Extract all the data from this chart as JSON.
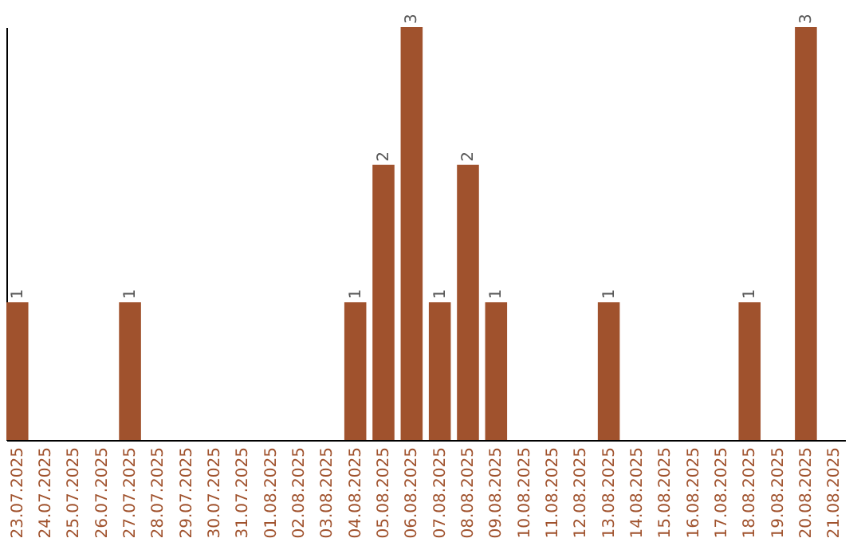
{
  "chart_data": {
    "type": "bar",
    "categories": [
      "23.07.2025",
      "24.07.2025",
      "25.07.2025",
      "26.07.2025",
      "27.07.2025",
      "28.07.2025",
      "29.07.2025",
      "30.07.2025",
      "31.07.2025",
      "01.08.2025",
      "02.08.2025",
      "03.08.2025",
      "04.08.2025",
      "05.08.2025",
      "06.08.2025",
      "07.08.2025",
      "08.08.2025",
      "09.08.2025",
      "10.08.2025",
      "11.08.2025",
      "12.08.2025",
      "13.08.2025",
      "14.08.2025",
      "15.08.2025",
      "16.08.2025",
      "17.08.2025",
      "18.08.2025",
      "19.08.2025",
      "20.08.2025",
      "21.08.2025"
    ],
    "values": [
      1,
      0,
      0,
      0,
      1,
      0,
      0,
      0,
      0,
      0,
      0,
      0,
      1,
      2,
      3,
      1,
      2,
      1,
      0,
      0,
      0,
      1,
      0,
      0,
      0,
      0,
      1,
      0,
      3,
      0
    ],
    "value_labels": [
      "1",
      null,
      null,
      null,
      "1",
      null,
      null,
      null,
      null,
      null,
      null,
      null,
      "1",
      "2",
      "3",
      "1",
      "2",
      "1",
      null,
      null,
      null,
      "1",
      null,
      null,
      null,
      null,
      "1",
      null,
      "3",
      null
    ],
    "color": "#a0522d",
    "ylim": [
      0,
      3
    ],
    "tick_labels": "x",
    "grid": false
  }
}
